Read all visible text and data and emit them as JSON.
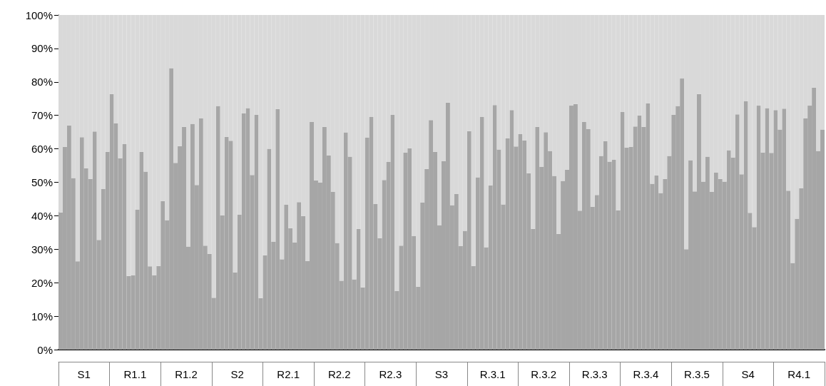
{
  "chart_data": {
    "type": "bar",
    "stacked": true,
    "categories": [
      null,
      null,
      null,
      null,
      null,
      null,
      "S1",
      null,
      null,
      null,
      null,
      null,
      null,
      null,
      null,
      null,
      null,
      null,
      "R1.1",
      null,
      null,
      null,
      null,
      null,
      null,
      null,
      null,
      null,
      null,
      null,
      "R1.2",
      null,
      null,
      null,
      null,
      null,
      null,
      null,
      null,
      null,
      null,
      null,
      "S2",
      null,
      null,
      null,
      null,
      null,
      null,
      null,
      null,
      null,
      null,
      null,
      "R2.1",
      null,
      null,
      null,
      null,
      null,
      null,
      null,
      null,
      null,
      null,
      null,
      "R2.2",
      null,
      null,
      null,
      null,
      null,
      null,
      null,
      null,
      null,
      null,
      null,
      "R2.3",
      null,
      null,
      null,
      null,
      null,
      null,
      null,
      null,
      null,
      null,
      null,
      "S3",
      null,
      null,
      null,
      null,
      null,
      null,
      null,
      null,
      null,
      null,
      null,
      "R.3.1",
      null,
      null,
      null,
      null,
      null,
      null,
      null,
      null,
      null,
      null,
      null,
      "R.3.2",
      null,
      null,
      null,
      null,
      null,
      null,
      null,
      null,
      null,
      null,
      null,
      "R.3.3",
      null,
      null,
      null,
      null,
      null,
      null,
      null,
      null,
      null,
      null,
      null,
      "R.3.4",
      null,
      null,
      null,
      null,
      null,
      null,
      null,
      null,
      null,
      null,
      null,
      "R.3.5",
      null,
      null,
      null,
      null,
      null,
      null,
      null,
      null,
      null,
      null,
      null,
      "S4",
      null,
      null,
      null,
      null,
      null,
      null,
      null,
      null,
      null,
      null,
      null,
      "R4.1",
      null,
      null,
      null,
      null,
      null
    ],
    "series": [
      {
        "color": "#a6a6a6",
        "values": [
          41.0,
          60.6,
          67.0,
          51.3,
          26.4,
          63.5,
          54.2,
          51.0,
          65.2,
          32.8,
          48.0,
          59.1,
          76.4,
          67.6,
          57.2,
          61.4,
          22.0,
          22.2,
          41.8,
          59.1,
          53.2,
          24.9,
          22.2,
          25.0,
          44.4,
          38.7,
          84.1,
          55.8,
          60.8,
          66.6,
          30.8,
          67.5,
          49.2,
          69.1,
          31.1,
          28.6,
          15.5,
          72.8,
          40.1,
          63.6,
          62.4,
          23.1,
          40.3,
          70.6,
          72.2,
          52.2,
          70.2,
          15.4,
          28.2,
          60.0,
          32.2,
          71.9,
          27.0,
          43.3,
          36.3,
          32.0,
          44.1,
          39.9,
          26.5,
          68.0,
          50.6,
          49.9,
          66.6,
          58.0,
          47.1,
          31.9,
          20.6,
          64.9,
          57.7,
          21.0,
          36.1,
          18.6,
          63.3,
          69.5,
          43.5,
          33.3,
          50.7,
          56.1,
          70.2,
          17.5,
          31.1,
          58.9,
          60.2,
          33.9,
          18.8,
          43.9,
          54.0,
          68.6,
          59.1,
          37.2,
          56.3,
          73.8,
          43.2,
          46.5,
          30.9,
          35.5,
          65.3,
          25.0,
          51.5,
          69.5,
          30.6,
          49.1,
          73.1,
          59.8,
          43.4,
          63.1,
          71.6,
          60.7,
          64.4,
          62.5,
          52.7,
          36.1,
          66.6,
          54.6,
          65.0,
          59.4,
          51.9,
          34.6,
          50.4,
          53.8,
          72.9,
          73.4,
          41.5,
          68.0,
          65.9,
          42.7,
          46.2,
          57.9,
          62.3,
          56.2,
          56.7,
          41.6,
          71.0,
          60.4,
          60.6,
          66.7,
          70.0,
          66.6,
          73.6,
          49.6,
          52.1,
          46.8,
          51.0,
          57.9,
          70.2,
          72.8,
          81.0,
          30.0,
          56.6,
          47.3,
          76.4,
          50.2,
          57.7,
          47.1,
          52.9,
          51.0,
          50.2,
          59.6,
          57.4,
          70.3,
          52.4,
          74.2,
          40.9,
          36.6,
          72.9,
          58.9,
          72.2,
          58.8,
          71.6,
          65.8,
          72.0,
          47.5,
          25.9,
          39.1,
          48.2,
          69.1,
          72.9,
          78.3,
          59.4,
          65.8
        ]
      },
      {
        "color": "#d9d9d9",
        "values": [
          59.0,
          39.4,
          33.0,
          48.7,
          73.6,
          36.5,
          45.8,
          49.0,
          34.8,
          67.2,
          52.0,
          40.9,
          23.6,
          32.4,
          42.8,
          38.6,
          78.0,
          77.8,
          58.2,
          40.9,
          46.8,
          75.1,
          77.8,
          75.0,
          55.6,
          61.3,
          15.9,
          44.2,
          39.2,
          33.4,
          69.2,
          32.5,
          50.8,
          30.9,
          68.9,
          71.4,
          84.5,
          27.2,
          59.9,
          36.4,
          37.6,
          76.9,
          59.7,
          29.4,
          27.8,
          47.8,
          29.8,
          84.6,
          71.8,
          40.0,
          67.8,
          28.1,
          73.0,
          56.7,
          63.7,
          68.0,
          55.9,
          60.1,
          73.5,
          32.0,
          49.4,
          50.1,
          33.4,
          42.0,
          52.9,
          68.1,
          79.4,
          35.1,
          42.3,
          79.0,
          63.9,
          81.4,
          36.7,
          30.5,
          56.5,
          66.7,
          49.3,
          43.9,
          29.8,
          82.5,
          68.9,
          41.1,
          39.8,
          66.1,
          81.2,
          56.1,
          46.0,
          31.4,
          40.9,
          62.8,
          43.7,
          26.2,
          56.8,
          53.5,
          69.1,
          64.5,
          34.7,
          75.0,
          48.5,
          30.5,
          69.4,
          50.9,
          26.9,
          40.2,
          56.6,
          36.9,
          28.4,
          39.3,
          35.6,
          37.5,
          47.3,
          63.9,
          33.4,
          45.4,
          35.0,
          40.6,
          48.1,
          65.4,
          49.6,
          46.2,
          27.1,
          26.6,
          58.5,
          32.0,
          34.1,
          57.3,
          53.8,
          42.1,
          37.7,
          43.8,
          43.3,
          58.4,
          29.0,
          39.6,
          39.4,
          33.3,
          30.0,
          33.4,
          26.4,
          50.4,
          47.9,
          53.2,
          49.0,
          42.1,
          29.8,
          27.2,
          19.0,
          70.0,
          43.4,
          52.7,
          23.6,
          49.8,
          42.3,
          52.9,
          47.1,
          49.0,
          49.8,
          40.4,
          42.6,
          29.7,
          47.6,
          25.8,
          59.1,
          63.4,
          27.1,
          41.1,
          27.8,
          41.2,
          28.4,
          34.2,
          28.0,
          52.5,
          74.1,
          60.9,
          51.8,
          30.9,
          27.1,
          21.7,
          40.6,
          34.2
        ]
      }
    ],
    "ylim": [
      0,
      100
    ],
    "yticks": [
      {
        "value": 0,
        "label": "0%"
      },
      {
        "value": 10,
        "label": "10%"
      },
      {
        "value": 20,
        "label": "20%"
      },
      {
        "value": 30,
        "label": "30%"
      },
      {
        "value": 40,
        "label": "40%"
      },
      {
        "value": 50,
        "label": "50%"
      },
      {
        "value": 60,
        "label": "60%"
      },
      {
        "value": 70,
        "label": "70%"
      },
      {
        "value": 80,
        "label": "80%"
      },
      {
        "value": 90,
        "label": "90%"
      },
      {
        "value": 100,
        "label": "100%"
      }
    ]
  }
}
